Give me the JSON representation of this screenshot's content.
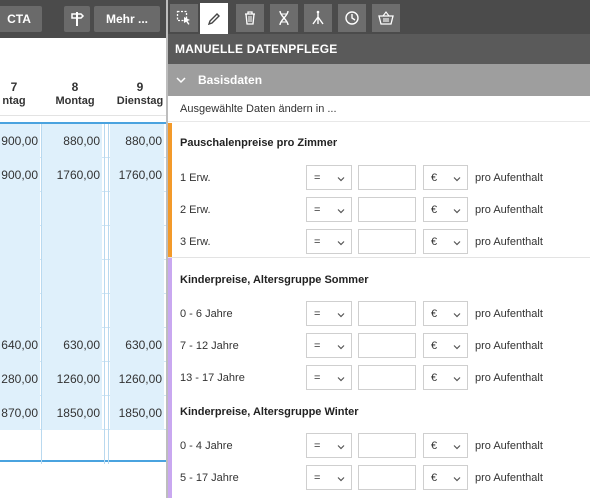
{
  "colors": {
    "toolbar_bg": "#4b4b4b",
    "panel_title_bg": "#5a5a5a",
    "section_bg": "#9e9e9e",
    "calendar_cell": "#dff0fb",
    "calendar_border": "#4aa3df",
    "group_orange": "#f39a2a",
    "group_purple": "#c9a8f0"
  },
  "left_toolbar": {
    "cta_label": "CTA",
    "sign_icon": "signpost-icon",
    "more_label": "Mehr ..."
  },
  "calendar": {
    "columns": [
      {
        "num": "7",
        "day": "ntag"
      },
      {
        "num": "8",
        "day": "Montag"
      },
      {
        "num": "9",
        "day": "Dienstag"
      }
    ],
    "rows": [
      [
        "900,00",
        "880,00",
        "880,00"
      ],
      [
        "900,00",
        "1760,00",
        "1760,00"
      ],
      [
        "",
        "",
        ""
      ],
      [
        "",
        "",
        ""
      ],
      [
        "",
        "",
        ""
      ],
      [
        "",
        "",
        ""
      ],
      [
        "640,00",
        "630,00",
        "630,00"
      ],
      [
        "280,00",
        "1260,00",
        "1260,00"
      ],
      [
        "870,00",
        "1850,00",
        "1850,00"
      ]
    ]
  },
  "right_toolbar": {
    "tools": [
      "select-icon",
      "edit-icon",
      "trash-icon",
      "dna-icon",
      "split-icon",
      "history-icon",
      "basket-icon"
    ]
  },
  "panel": {
    "title": "MANUELLE DATENPFLEGE",
    "section": "Basisdaten",
    "subline": "Ausgewählte Daten ändern in ..."
  },
  "groups": [
    {
      "title": "Pauschalenpreise pro Zimmer",
      "rows": [
        {
          "label": "1 Erw.",
          "op": "=",
          "currency": "€",
          "unit": "pro Aufenthalt",
          "value": ""
        },
        {
          "label": "2 Erw.",
          "op": "=",
          "currency": "€",
          "unit": "pro Aufenthalt",
          "value": ""
        },
        {
          "label": "3 Erw.",
          "op": "=",
          "currency": "€",
          "unit": "pro Aufenthalt",
          "value": ""
        }
      ]
    },
    {
      "title": "Kinderpreise, Altersgruppe Sommer",
      "rows": [
        {
          "label": "0 - 6 Jahre",
          "op": "=",
          "currency": "€",
          "unit": "pro Aufenthalt",
          "value": ""
        },
        {
          "label": "7 - 12 Jahre",
          "op": "=",
          "currency": "€",
          "unit": "pro Aufenthalt",
          "value": ""
        },
        {
          "label": "13 - 17 Jahre",
          "op": "=",
          "currency": "€",
          "unit": "pro Aufenthalt",
          "value": ""
        }
      ]
    },
    {
      "title": "Kinderpreise, Altersgruppe Winter",
      "rows": [
        {
          "label": "0 - 4 Jahre",
          "op": "=",
          "currency": "€",
          "unit": "pro Aufenthalt",
          "value": ""
        },
        {
          "label": "5 - 17 Jahre",
          "op": "=",
          "currency": "€",
          "unit": "pro Aufenthalt",
          "value": ""
        }
      ]
    }
  ]
}
